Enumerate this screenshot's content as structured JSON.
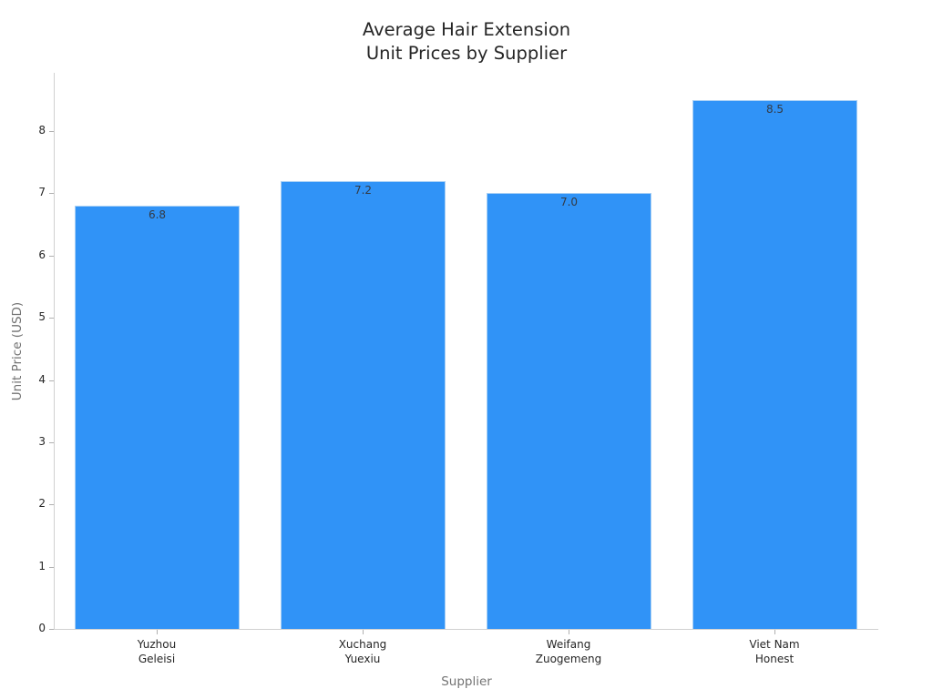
{
  "chart_data": {
    "type": "bar",
    "title": "Average Hair Extension\nUnit Prices by Supplier",
    "title_lines": [
      "Average Hair Extension",
      "Unit Prices by Supplier"
    ],
    "xlabel": "Supplier",
    "ylabel": "Unit Price (USD)",
    "categories": [
      "Yuzhou Geleisi",
      "Xuchang Yuexiu",
      "Weifang Zuogemeng",
      "Viet Nam Honest"
    ],
    "category_lines": [
      [
        "Yuzhou",
        "Geleisi"
      ],
      [
        "Xuchang",
        "Yuexiu"
      ],
      [
        "Weifang",
        "Zuogemeng"
      ],
      [
        "Viet Nam",
        "Honest"
      ]
    ],
    "values": [
      6.8,
      7.2,
      7.0,
      8.5
    ],
    "value_labels": [
      "6.8",
      "7.2",
      "7.0",
      "8.5"
    ],
    "yticks": [
      0,
      1,
      2,
      3,
      4,
      5,
      6,
      7,
      8
    ],
    "ylim": [
      0,
      8.93
    ],
    "grid": false,
    "legend": null,
    "bar_color": "#3093F7"
  }
}
